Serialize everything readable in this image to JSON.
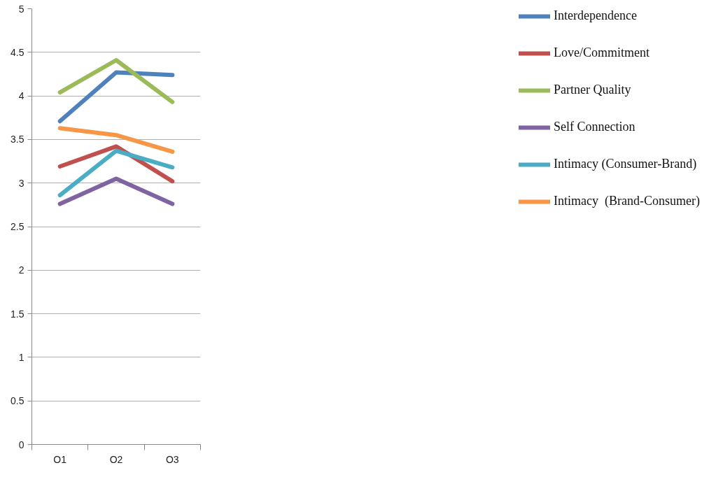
{
  "chart_data": {
    "type": "line",
    "categories": [
      "O1",
      "O2",
      "O3"
    ],
    "series": [
      {
        "name": "Interdependence",
        "color": "#4f81bd",
        "values": [
          3.71,
          4.27,
          4.24
        ]
      },
      {
        "name": "Love/Commitment",
        "color": "#c0504d",
        "values": [
          3.19,
          3.42,
          3.02
        ]
      },
      {
        "name": "Partner Quality",
        "color": "#9bbb59",
        "values": [
          4.04,
          4.41,
          3.93
        ]
      },
      {
        "name": "Self Connection",
        "color": "#8064a2",
        "values": [
          2.76,
          3.05,
          2.76
        ]
      },
      {
        "name": "Intimacy (Consumer-Brand)",
        "color": "#4bacc6",
        "values": [
          2.86,
          3.37,
          3.18
        ]
      },
      {
        "name": "Intimacy  (Brand-Consumer)",
        "color": "#f79646",
        "values": [
          3.63,
          3.55,
          3.36
        ]
      }
    ],
    "ylim": [
      0,
      5
    ],
    "yticks": [
      0,
      0.5,
      1,
      1.5,
      2,
      2.5,
      3,
      3.5,
      4,
      4.5,
      5
    ],
    "grid": "y",
    "legend": "right",
    "marker": "none",
    "line_style": "solid"
  }
}
